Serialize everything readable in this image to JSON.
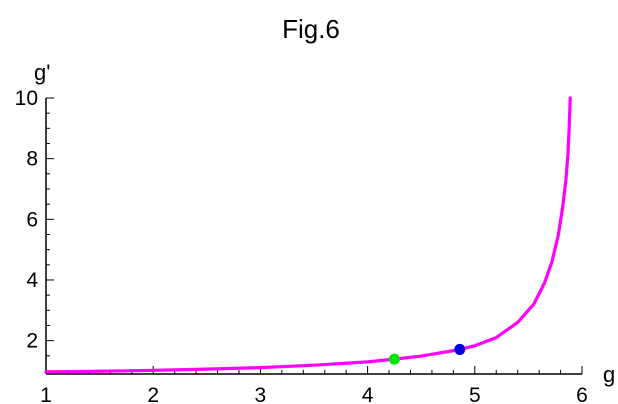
{
  "chart_data": {
    "type": "line",
    "title": "Fig.6",
    "xlabel": "g",
    "ylabel": "g'",
    "xlim": [
      1,
      6
    ],
    "ylim": [
      0.9,
      10
    ],
    "grid": false,
    "x_ticks": [
      "1",
      "2",
      "3",
      "4",
      "5",
      "6"
    ],
    "y_ticks": [
      "2",
      "4",
      "6",
      "8",
      "10"
    ],
    "series": [
      {
        "color": "#ff00ff",
        "x": [
          1.0,
          1.5,
          2.0,
          2.5,
          3.0,
          3.5,
          4.0,
          4.25,
          4.5,
          4.85,
          5.0,
          5.2,
          5.4,
          5.55,
          5.65,
          5.72,
          5.78,
          5.82,
          5.85,
          5.87,
          5.88,
          5.89
        ],
        "y": [
          0.97,
          0.99,
          1.02,
          1.06,
          1.11,
          1.19,
          1.3,
          1.39,
          1.49,
          1.7,
          1.83,
          2.1,
          2.6,
          3.2,
          3.9,
          4.6,
          5.5,
          6.4,
          7.3,
          8.2,
          9.0,
          10.0
        ]
      }
    ],
    "points": [
      {
        "x": 4.25,
        "y": 1.39,
        "color": "#00e600"
      },
      {
        "x": 4.86,
        "y": 1.71,
        "color": "#0000e0"
      }
    ]
  }
}
